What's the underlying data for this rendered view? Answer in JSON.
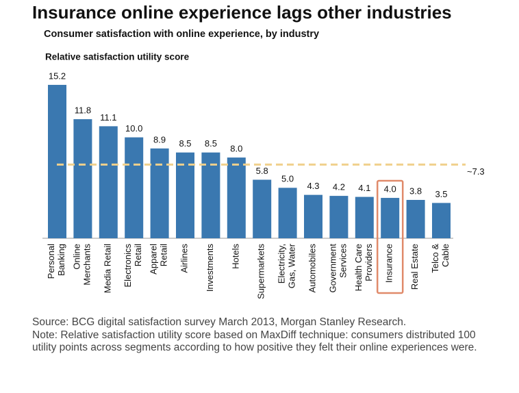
{
  "chart_data": {
    "type": "bar",
    "title": "Insurance online experience lags other industries",
    "subtitle": "Consumer satisfaction with online experience, by industry",
    "y_label": "Relative satisfaction utility score",
    "categories": [
      "Personal\nBanking",
      "Online\nMerchants",
      "Media Retail",
      "Electronics\nRetail",
      "Apparel\nRetail",
      "Airlines",
      "Investments",
      "Hotels",
      "Supermarkets",
      "Electricity,\nGas, Water",
      "Automobiles",
      "Government\nServices",
      "Health Care\nProviders",
      "Insurance",
      "Real Estate",
      "Telco &\nCable"
    ],
    "values": [
      15.2,
      11.8,
      11.1,
      10.0,
      8.9,
      8.5,
      8.5,
      8.0,
      5.8,
      5.0,
      4.3,
      4.2,
      4.1,
      4.0,
      3.8,
      3.5
    ],
    "value_labels": [
      "15.2",
      "11.8",
      "11.1",
      "10.0",
      "8.9",
      "8.5",
      "8.5",
      "8.0",
      "5.8",
      "5.0",
      "4.3",
      "4.2",
      "4.1",
      "4.0",
      "3.8",
      "3.5"
    ],
    "color": "#3a78b0",
    "ylim": [
      0,
      16
    ],
    "reference_line": {
      "value": 7.3,
      "label": "~7.3",
      "color": "#f0d08c"
    },
    "highlight": 13,
    "highlight_color": "#e08a6a",
    "source": "Source: BCG digital satisfaction survey March 2013, Morgan Stanley Research.",
    "note": "Note: Relative satisfaction utility score based on MaxDiff technique: consumers distributed 100 utility points across segments according to how positive they felt their online experiences were."
  }
}
